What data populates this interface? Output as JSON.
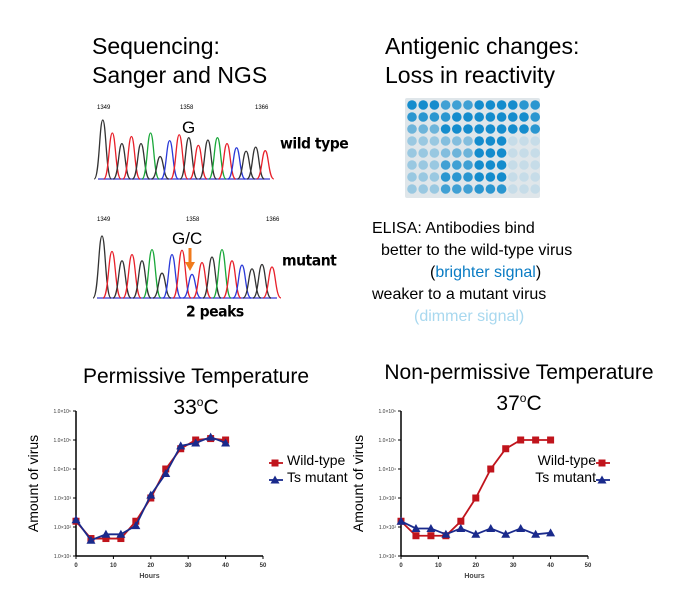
{
  "sequencing": {
    "title_line1": "Sequencing:",
    "title_line2": "Sanger and NGS",
    "wildtype": {
      "label": "wild type",
      "base_call": "G",
      "positions": [
        "1349",
        "1358",
        "1366"
      ]
    },
    "mutant": {
      "label": "mutant",
      "base_call": "G/C",
      "positions": [
        "1349",
        "1358",
        "1366"
      ],
      "note": "2 peaks",
      "arrow_color": "#f07a1c"
    }
  },
  "antigenic": {
    "title_line1": "Antigenic changes:",
    "title_line2": "Loss in reactivity",
    "elisa_line1": "ELISA: Antibodies bind",
    "elisa_line2": "better to the wild-type virus",
    "open_paren": "(",
    "close_paren": ")",
    "brighter": "brighter signal",
    "brighter_color": "#0a7cc4",
    "elisa_line4": "weaker to a mutant virus",
    "dimmer": "dimmer signal",
    "dimmer_color": "#a8d8ef"
  },
  "chart_data": [
    {
      "type": "line",
      "title": "Permissive Temperature",
      "subtitle": "33oC",
      "xlabel": "Hours",
      "ylabel": "Amount of virus",
      "xlim": [
        0,
        50
      ],
      "ylim": [
        10,
        1000000
      ],
      "yscale": "log",
      "xticks": [
        "0",
        "10",
        "20",
        "30",
        "40",
        "50"
      ],
      "yticks": [
        "1.0×10¹",
        "1.0×10²",
        "1.0×10³",
        "1.0×10⁴",
        "1.0×10⁵",
        "1.0×10⁶"
      ],
      "legend": "right",
      "x": [
        0,
        4,
        8,
        12,
        16,
        20,
        24,
        28,
        32,
        36,
        40
      ],
      "series": [
        {
          "name": "Wild-type",
          "color": "#c0141c",
          "marker": "square",
          "values": [
            158,
            40,
            40,
            40,
            158,
            1000,
            10000,
            50000,
            100000,
            112000,
            100000
          ]
        },
        {
          "name": "Ts mutant",
          "color": "#1a2a8c",
          "marker": "triangle",
          "values": [
            178,
            35,
            56,
            56,
            112,
            1260,
            7000,
            63000,
            79000,
            126000,
            79000
          ]
        }
      ]
    },
    {
      "type": "line",
      "title": "Non-permissive Temperature",
      "subtitle": "37oC",
      "xlabel": "Hours",
      "ylabel": "Amount of virus",
      "xlim": [
        0,
        50
      ],
      "ylim": [
        10,
        1000000
      ],
      "yscale": "log",
      "xticks": [
        "0",
        "10",
        "20",
        "30",
        "40",
        "50"
      ],
      "yticks": [
        "1.0×10¹",
        "1.0×10²",
        "1.0×10³",
        "1.0×10⁴",
        "1.0×10⁵",
        "1.0×10⁶"
      ],
      "legend": "right",
      "x": [
        0,
        4,
        8,
        12,
        16,
        20,
        24,
        28,
        32,
        36,
        40
      ],
      "series": [
        {
          "name": "Wild-type",
          "color": "#c0141c",
          "marker": "square",
          "values": [
            158,
            50,
            50,
            50,
            158,
            1000,
            10000,
            50000,
            100000,
            100000,
            100000
          ]
        },
        {
          "name": "Ts mutant",
          "color": "#1a2a8c",
          "marker": "triangle",
          "values": [
            158,
            89,
            89,
            56,
            89,
            56,
            89,
            56,
            89,
            56,
            63
          ]
        }
      ]
    }
  ]
}
